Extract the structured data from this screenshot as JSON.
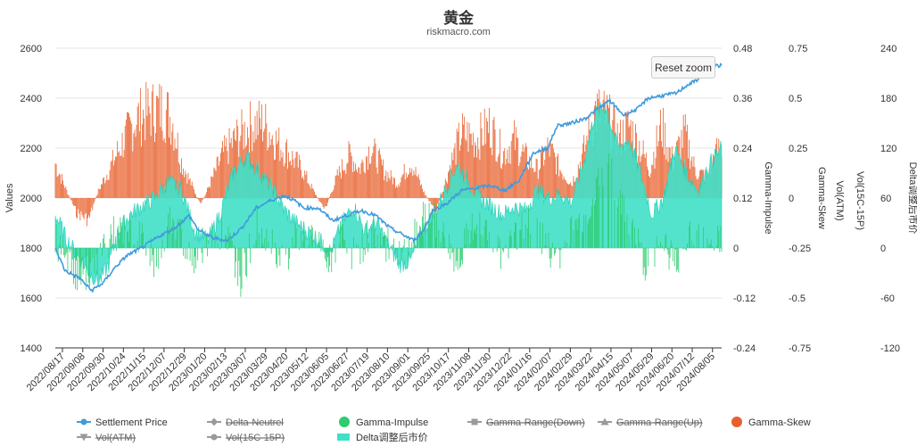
{
  "chart_data": {
    "type": "bar",
    "title": "黄金",
    "subtitle": "riskmacro.com",
    "reset_zoom_label": "Reset zoom",
    "x_categories": [
      "2022/08/17",
      "2022/09/08",
      "2022/09/30",
      "2022/10/24",
      "2022/11/15",
      "2022/12/07",
      "2022/12/29",
      "2023/01/20",
      "2023/02/13",
      "2023/03/07",
      "2023/03/29",
      "2023/04/20",
      "2023/05/12",
      "2023/06/05",
      "2023/06/27",
      "2023/07/19",
      "2023/08/10",
      "2023/09/01",
      "2023/09/25",
      "2023/10/17",
      "2023/11/08",
      "2023/11/30",
      "2023/12/22",
      "2024/01/16",
      "2024/02/07",
      "2024/02/29",
      "2024/03/22",
      "2024/04/15",
      "2024/05/07",
      "2024/05/29",
      "2024/06/20",
      "2024/07/12",
      "2024/08/05"
    ],
    "axes": {
      "values": {
        "label": "Values",
        "min": 1400,
        "max": 2600,
        "ticks": [
          "2600",
          "2400",
          "2200",
          "2000",
          "1800",
          "1600",
          "1400"
        ]
      },
      "gamma_impulse": {
        "label": "Gamma-Impulse",
        "min": -0.24,
        "max": 0.48,
        "ticks": [
          "0.48",
          "0.36",
          "0.24",
          "0.12",
          "0",
          "-0.12",
          "-0.24"
        ]
      },
      "gamma_skew": {
        "label": "Gamma-Skew",
        "min": -0.75,
        "max": 0.75,
        "ticks": [
          "0.75",
          "0.5",
          "0.25",
          "0",
          "-0.25",
          "-0.5",
          "-0.75"
        ]
      },
      "vol": {
        "label": "Vol(ATM)",
        "label2": "Vol(15C-15P)"
      },
      "delta_adj": {
        "label": "Delta调整后市价",
        "min": -120,
        "max": 240,
        "ticks": [
          "240",
          "180",
          "120",
          "60",
          "0",
          "-60",
          "-120"
        ]
      }
    },
    "legend": [
      {
        "name": "Settlement Price",
        "color": "#3f9bdc",
        "marker": "circle",
        "line": true,
        "hidden": false
      },
      {
        "name": "Delta-Neutrel",
        "color": "#555555",
        "marker": "diamond",
        "line": true,
        "hidden": true
      },
      {
        "name": "Gamma-Impulse",
        "color": "#2ecc71",
        "marker": "circle",
        "line": false,
        "hidden": false
      },
      {
        "name": "Gamma-Range(Down)",
        "color": "#555555",
        "marker": "square",
        "line": true,
        "hidden": true
      },
      {
        "name": "Gamma-Range(Up)",
        "color": "#555555",
        "marker": "triangle",
        "line": true,
        "hidden": true
      },
      {
        "name": "Gamma-Skew",
        "color": "#e8602c",
        "marker": "circle",
        "line": false,
        "hidden": false
      },
      {
        "name": "Vol(ATM)",
        "color": "#555555",
        "marker": "triangle-down",
        "line": true,
        "hidden": true
      },
      {
        "name": "Vol(15C-15P)",
        "color": "#555555",
        "marker": "circle",
        "line": true,
        "hidden": true
      },
      {
        "name": "Delta调整后市价",
        "color": "#40e0c8",
        "marker": "area",
        "line": false,
        "hidden": false
      }
    ],
    "settlement_price_keypoints": [
      [
        0,
        1800
      ],
      [
        10,
        1710
      ],
      [
        25,
        1680
      ],
      [
        38,
        1630
      ],
      [
        50,
        1660
      ],
      [
        62,
        1720
      ],
      [
        75,
        1770
      ],
      [
        90,
        1800
      ],
      [
        110,
        1850
      ],
      [
        125,
        1880
      ],
      [
        140,
        1930
      ],
      [
        150,
        1870
      ],
      [
        165,
        1840
      ],
      [
        180,
        1830
      ],
      [
        195,
        1880
      ],
      [
        210,
        1960
      ],
      [
        225,
        1990
      ],
      [
        240,
        2010
      ],
      [
        250,
        1990
      ],
      [
        260,
        1960
      ],
      [
        275,
        1960
      ],
      [
        290,
        1910
      ],
      [
        305,
        1930
      ],
      [
        320,
        1950
      ],
      [
        335,
        1930
      ],
      [
        350,
        1880
      ],
      [
        365,
        1850
      ],
      [
        375,
        1830
      ],
      [
        385,
        1870
      ],
      [
        395,
        1950
      ],
      [
        410,
        1980
      ],
      [
        425,
        2030
      ],
      [
        440,
        2040
      ],
      [
        455,
        2050
      ],
      [
        470,
        2030
      ],
      [
        485,
        2070
      ],
      [
        500,
        2180
      ],
      [
        515,
        2200
      ],
      [
        525,
        2290
      ],
      [
        540,
        2300
      ],
      [
        555,
        2320
      ],
      [
        565,
        2350
      ],
      [
        580,
        2390
      ],
      [
        595,
        2330
      ],
      [
        610,
        2360
      ],
      [
        620,
        2400
      ],
      [
        635,
        2410
      ],
      [
        650,
        2420
      ],
      [
        660,
        2450
      ],
      [
        670,
        2470
      ],
      [
        680,
        2500
      ],
      [
        690,
        2530
      ],
      [
        697,
        2530
      ]
    ],
    "gamma_skew_keypoints": [
      [
        0,
        0.24
      ],
      [
        12,
        0.05
      ],
      [
        22,
        -0.1
      ],
      [
        35,
        -0.15
      ],
      [
        45,
        0.05
      ],
      [
        55,
        0.18
      ],
      [
        70,
        0.38
      ],
      [
        85,
        0.55
      ],
      [
        100,
        0.6
      ],
      [
        112,
        0.62
      ],
      [
        122,
        0.55
      ],
      [
        132,
        0.25
      ],
      [
        142,
        0.1
      ],
      [
        152,
        -0.05
      ],
      [
        162,
        0.1
      ],
      [
        175,
        0.3
      ],
      [
        190,
        0.42
      ],
      [
        205,
        0.5
      ],
      [
        218,
        0.52
      ],
      [
        230,
        0.4
      ],
      [
        245,
        0.3
      ],
      [
        258,
        0.2
      ],
      [
        270,
        0.05
      ],
      [
        282,
        -0.08
      ],
      [
        295,
        0.15
      ],
      [
        308,
        0.3
      ],
      [
        318,
        0.2
      ],
      [
        330,
        0.35
      ],
      [
        345,
        0.18
      ],
      [
        358,
        0.1
      ],
      [
        372,
        0.25
      ],
      [
        385,
        0.05
      ],
      [
        398,
        -0.1
      ],
      [
        412,
        0.2
      ],
      [
        425,
        0.45
      ],
      [
        440,
        0.4
      ],
      [
        455,
        0.5
      ],
      [
        468,
        0.3
      ],
      [
        480,
        0.4
      ],
      [
        492,
        0.28
      ],
      [
        504,
        0.2
      ],
      [
        516,
        0.35
      ],
      [
        528,
        0.2
      ],
      [
        540,
        0.1
      ],
      [
        552,
        0.3
      ],
      [
        565,
        0.6
      ],
      [
        578,
        0.55
      ],
      [
        590,
        0.4
      ],
      [
        600,
        0.5
      ],
      [
        612,
        0.35
      ],
      [
        622,
        0.2
      ],
      [
        634,
        0.5
      ],
      [
        646,
        0.25
      ],
      [
        658,
        0.45
      ],
      [
        670,
        0.18
      ],
      [
        682,
        0.15
      ],
      [
        690,
        0.3
      ],
      [
        697,
        0.35
      ]
    ],
    "delta_adj_keypoints": [
      [
        0,
        40
      ],
      [
        12,
        10
      ],
      [
        24,
        -10
      ],
      [
        36,
        -30
      ],
      [
        46,
        -40
      ],
      [
        56,
        -20
      ],
      [
        66,
        20
      ],
      [
        78,
        40
      ],
      [
        90,
        50
      ],
      [
        104,
        60
      ],
      [
        118,
        80
      ],
      [
        132,
        70
      ],
      [
        146,
        20
      ],
      [
        160,
        10
      ],
      [
        172,
        40
      ],
      [
        186,
        90
      ],
      [
        200,
        110
      ],
      [
        214,
        90
      ],
      [
        228,
        70
      ],
      [
        240,
        45
      ],
      [
        252,
        30
      ],
      [
        264,
        20
      ],
      [
        276,
        10
      ],
      [
        288,
        -5
      ],
      [
        300,
        30
      ],
      [
        312,
        50
      ],
      [
        324,
        20
      ],
      [
        336,
        30
      ],
      [
        348,
        5
      ],
      [
        360,
        -20
      ],
      [
        372,
        -15
      ],
      [
        384,
        20
      ],
      [
        396,
        40
      ],
      [
        408,
        70
      ],
      [
        420,
        100
      ],
      [
        432,
        80
      ],
      [
        444,
        60
      ],
      [
        456,
        50
      ],
      [
        468,
        40
      ],
      [
        480,
        50
      ],
      [
        492,
        45
      ],
      [
        504,
        70
      ],
      [
        516,
        60
      ],
      [
        528,
        65
      ],
      [
        540,
        55
      ],
      [
        552,
        100
      ],
      [
        564,
        160
      ],
      [
        576,
        170
      ],
      [
        588,
        120
      ],
      [
        600,
        130
      ],
      [
        612,
        90
      ],
      [
        624,
        40
      ],
      [
        636,
        60
      ],
      [
        648,
        120
      ],
      [
        660,
        90
      ],
      [
        672,
        70
      ],
      [
        684,
        100
      ],
      [
        697,
        120
      ]
    ],
    "gamma_impulse_keypoints": [
      [
        0,
        0.02
      ],
      [
        15,
        -0.05
      ],
      [
        30,
        -0.07
      ],
      [
        45,
        -0.02
      ],
      [
        60,
        0.03
      ],
      [
        75,
        0.05
      ],
      [
        90,
        0.02
      ],
      [
        105,
        -0.04
      ],
      [
        120,
        0.06
      ],
      [
        135,
        0.02
      ],
      [
        150,
        -0.05
      ],
      [
        165,
        0.04
      ],
      [
        180,
        0.03
      ],
      [
        195,
        -0.08
      ],
      [
        210,
        0.06
      ],
      [
        225,
        0.02
      ],
      [
        240,
        -0.03
      ],
      [
        255,
        0.04
      ],
      [
        270,
        0.02
      ],
      [
        285,
        -0.04
      ],
      [
        300,
        0.03
      ],
      [
        315,
        -0.03
      ],
      [
        330,
        0.05
      ],
      [
        345,
        0.01
      ],
      [
        360,
        -0.02
      ],
      [
        375,
        0.02
      ],
      [
        390,
        0.1
      ],
      [
        405,
        0.03
      ],
      [
        420,
        -0.03
      ],
      [
        435,
        0.04
      ],
      [
        450,
        0.05
      ],
      [
        465,
        -0.02
      ],
      [
        480,
        0.03
      ],
      [
        495,
        0.06
      ],
      [
        510,
        0.02
      ],
      [
        525,
        -0.04
      ],
      [
        540,
        0.04
      ],
      [
        555,
        0.08
      ],
      [
        570,
        0.16
      ],
      [
        580,
        0.2
      ],
      [
        590,
        0.1
      ],
      [
        605,
        0.04
      ],
      [
        620,
        -0.06
      ],
      [
        635,
        0.02
      ],
      [
        650,
        -0.04
      ],
      [
        665,
        0.05
      ],
      [
        680,
        0.03
      ],
      [
        697,
        0.02
      ]
    ]
  }
}
